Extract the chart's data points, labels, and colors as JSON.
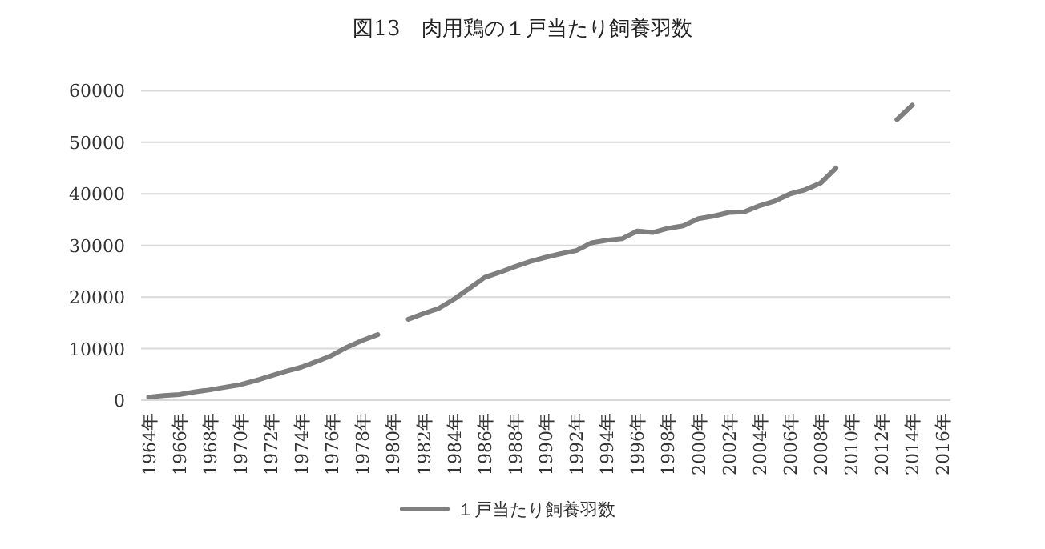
{
  "chart_data": {
    "type": "line",
    "title": "図13　肉用鶏の１戸当たり飼養羽数",
    "categories": [
      "1964年",
      null,
      "1966年",
      null,
      "1968年",
      null,
      "1970年",
      null,
      "1972年",
      null,
      "1974年",
      null,
      "1976年",
      null,
      "1978年",
      null,
      "1980年",
      null,
      "1982年",
      null,
      "1984年",
      null,
      "1986年",
      null,
      "1988年",
      null,
      "1990年",
      null,
      "1992年",
      null,
      "1994年",
      null,
      "1996年",
      null,
      "1998年",
      null,
      "2000年",
      null,
      "2002年",
      null,
      "2004年",
      null,
      "2006年",
      null,
      "2008年",
      null,
      "2010年",
      null,
      "2012年",
      null,
      "2014年",
      null,
      "2016年"
    ],
    "series": [
      {
        "name": "１戸当たり飼養羽数",
        "color": "#7f7f7f",
        "values": [
          600,
          900,
          1100,
          1600,
          2000,
          2500,
          3000,
          3800,
          4700,
          5600,
          6400,
          7500,
          8700,
          10300,
          11600,
          12700,
          null,
          15700,
          16800,
          17800,
          19600,
          21700,
          23800,
          24800,
          25900,
          26900,
          27700,
          28400,
          29000,
          30500,
          31000,
          31300,
          32800,
          32500,
          33300,
          33800,
          35200,
          35700,
          36400,
          36500,
          37700,
          38600,
          40000,
          40800,
          42100,
          45000,
          null,
          null,
          null,
          54400,
          57200,
          null,
          null
        ]
      }
    ],
    "ylim": [
      0,
      60000
    ],
    "yticks": [
      0,
      10000,
      20000,
      30000,
      40000,
      50000,
      60000
    ],
    "grid": "y",
    "legend": "bottom",
    "marker": "none",
    "line_style": "solid"
  }
}
